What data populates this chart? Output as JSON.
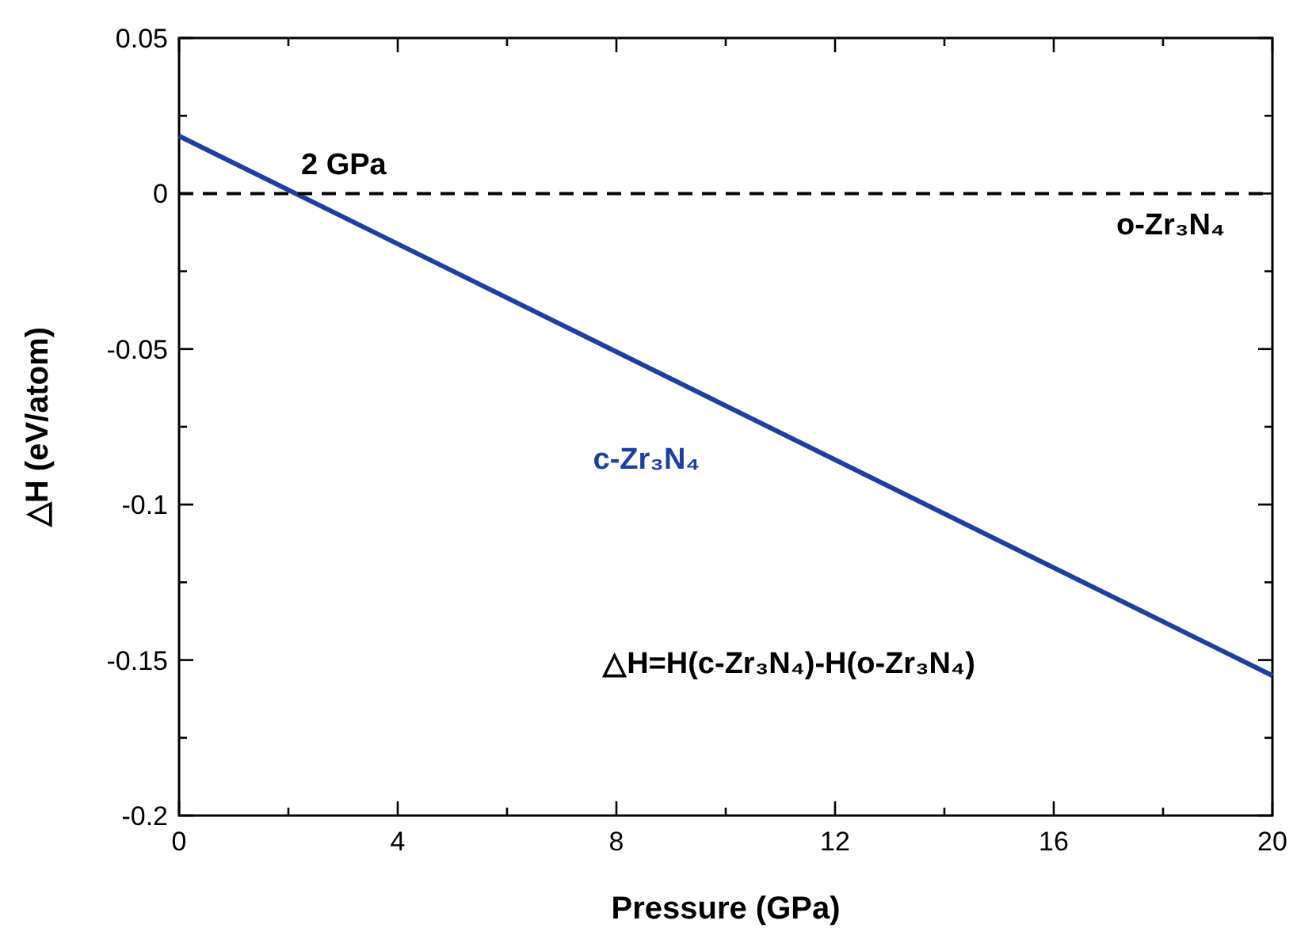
{
  "chart_data": {
    "type": "line",
    "xlabel": "Pressure (GPa)",
    "ylabel": "△H (eV/atom)",
    "x": [
      0,
      20
    ],
    "series": [
      {
        "name": "c-Zr₃N₄",
        "color": "#1f3f9f",
        "values": [
          0.0185,
          -0.155
        ]
      },
      {
        "name": "o-Zr₃N₄",
        "color": "#000000",
        "values": [
          0,
          0
        ],
        "line_style": "dashed"
      }
    ],
    "xlim": [
      0,
      20
    ],
    "xticks": [
      0,
      {
        "value": 2,
        "label": null
      },
      4,
      {
        "value": 6,
        "label": null
      },
      8,
      {
        "value": 10,
        "label": null
      },
      12,
      {
        "value": 14,
        "label": null
      },
      16,
      {
        "value": 18,
        "label": null
      },
      20
    ],
    "ylim": [
      -0.2,
      0.05
    ],
    "yticks": [
      -0.2,
      {
        "value": -0.175,
        "label": null
      },
      -0.15,
      {
        "value": -0.125,
        "label": null
      },
      -0.1,
      {
        "value": -0.075,
        "label": null
      },
      -0.05,
      {
        "value": -0.025,
        "label": null
      },
      0,
      {
        "value": 0.025,
        "label": null
      },
      0.05
    ],
    "annotations": [
      {
        "text": "2 GPa",
        "x": 2,
        "y": 0
      },
      "△H=H(c-Zr₃N₄)-H(o-Zr₃N₄)"
    ],
    "line_style": "solid",
    "marker": "none",
    "grid": false,
    "legend": false
  }
}
